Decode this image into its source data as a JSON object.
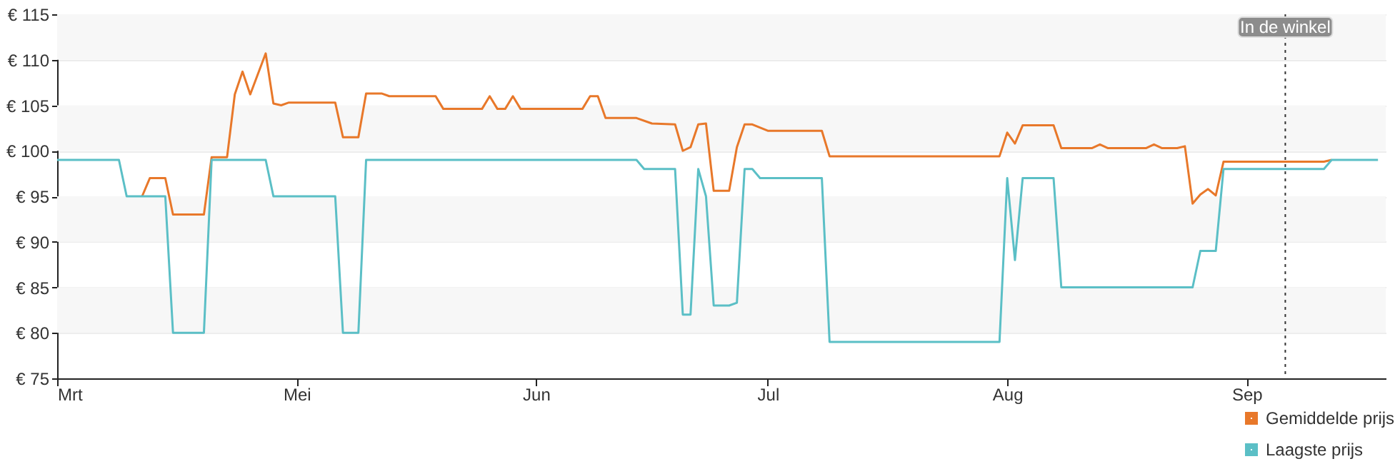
{
  "chart_data": {
    "type": "line",
    "xlim": [
      "--03-31",
      "--09-19"
    ],
    "xticks": [
      {
        "value": "--03-31",
        "label": "Mrt"
      },
      {
        "value": "--05-01",
        "label": "Mei"
      },
      {
        "value": "--06-01",
        "label": "Jun"
      },
      {
        "value": "--07-01",
        "label": "Jul"
      },
      {
        "value": "--08-01",
        "label": "Aug"
      },
      {
        "value": "--09-01",
        "label": "Sep"
      }
    ],
    "ylim": [
      75,
      115
    ],
    "yticks": [
      {
        "value": 75,
        "label": "€ 75"
      },
      {
        "value": 80,
        "label": "€ 80"
      },
      {
        "value": 85,
        "label": "€ 85"
      },
      {
        "value": 90,
        "label": "€ 90"
      },
      {
        "value": 95,
        "label": "€ 95"
      },
      {
        "value": 100,
        "label": "€ 100"
      },
      {
        "value": 105,
        "label": "€ 105"
      },
      {
        "value": 110,
        "label": "€ 110"
      },
      {
        "value": 115,
        "label": "€ 115"
      }
    ],
    "grid": "y",
    "legend": "bottom right",
    "ref_lines": [
      {
        "axis": "x",
        "value": "--09-06",
        "label": "In de winkel",
        "line_style": "dotted",
        "color": "#333333"
      }
    ],
    "series": [
      {
        "name": "Gemiddelde prijs",
        "color": "#e8782a",
        "x": [
          "--04-11",
          "--04-12",
          "--04-14",
          "--04-15",
          "--04-19",
          "--04-20",
          "--04-22",
          "--04-23",
          "--04-24",
          "--04-25",
          "--04-27",
          "--04-28",
          "--04-29",
          "--04-30",
          "--05-06",
          "--05-07",
          "--05-09",
          "--05-10",
          "--05-12",
          "--05-13",
          "--05-19",
          "--05-20",
          "--05-25",
          "--05-26",
          "--05-27",
          "--05-28",
          "--05-29",
          "--05-30",
          "--06-07",
          "--06-08",
          "--06-09",
          "--06-10",
          "--06-14",
          "--06-16",
          "--06-19",
          "--06-20",
          "--06-21",
          "--06-22",
          "--06-23",
          "--06-24",
          "--06-26",
          "--06-27",
          "--06-28",
          "--06-29",
          "--07-01",
          "--07-08",
          "--07-09",
          "--07-31",
          "--08-01",
          "--08-02",
          "--08-03",
          "--08-07",
          "--08-08",
          "--08-12",
          "--08-13",
          "--08-14",
          "--08-19",
          "--08-20",
          "--08-21",
          "--08-23",
          "--08-24",
          "--08-25",
          "--08-26",
          "--08-27",
          "--08-28",
          "--08-29",
          "--09-11",
          "--09-12"
        ],
        "values": [
          95,
          97,
          97,
          93,
          93,
          99.3,
          99.3,
          106.2,
          108.7,
          106.2,
          110.7,
          105.2,
          105,
          105.3,
          105.3,
          101.5,
          101.5,
          106.3,
          106.3,
          106,
          106,
          104.6,
          104.6,
          106,
          104.6,
          104.6,
          106,
          104.6,
          104.6,
          106,
          106,
          103.6,
          103.6,
          103,
          102.9,
          100,
          100.4,
          102.9,
          103,
          95.6,
          95.6,
          100.4,
          102.9,
          102.9,
          102.2,
          102.2,
          99.4,
          99.4,
          102,
          100.8,
          102.8,
          102.8,
          100.3,
          100.3,
          100.7,
          100.3,
          100.3,
          100.7,
          100.3,
          100.3,
          100.5,
          94.2,
          95.2,
          95.8,
          95.1,
          98.8,
          98.8,
          99
        ]
      },
      {
        "name": "Laagste prijs",
        "color": "#5bbfc6",
        "x": [
          "--03-31",
          "--04-08",
          "--04-09",
          "--04-14",
          "--04-15",
          "--04-19",
          "--04-20",
          "--04-27",
          "--04-28",
          "--05-06",
          "--05-07",
          "--05-09",
          "--05-10",
          "--06-14",
          "--06-15",
          "--06-19",
          "--06-20",
          "--06-21",
          "--06-22",
          "--06-23",
          "--06-24",
          "--06-26",
          "--06-27",
          "--06-28",
          "--06-29",
          "--06-30",
          "--07-08",
          "--07-09",
          "--07-31",
          "--08-01",
          "--08-02",
          "--08-03",
          "--08-07",
          "--08-08",
          "--08-25",
          "--08-26",
          "--08-28",
          "--08-29",
          "--09-11",
          "--09-12",
          "--09-18"
        ],
        "values": [
          99,
          99,
          95,
          95,
          80,
          80,
          99,
          99,
          95,
          95,
          80,
          80,
          99,
          99,
          98,
          98,
          82,
          82,
          98,
          95,
          83,
          83,
          83.3,
          98,
          98,
          97,
          97,
          79,
          79,
          97,
          88,
          97,
          97,
          85,
          85,
          89,
          89,
          98,
          98,
          99,
          99
        ]
      }
    ]
  }
}
